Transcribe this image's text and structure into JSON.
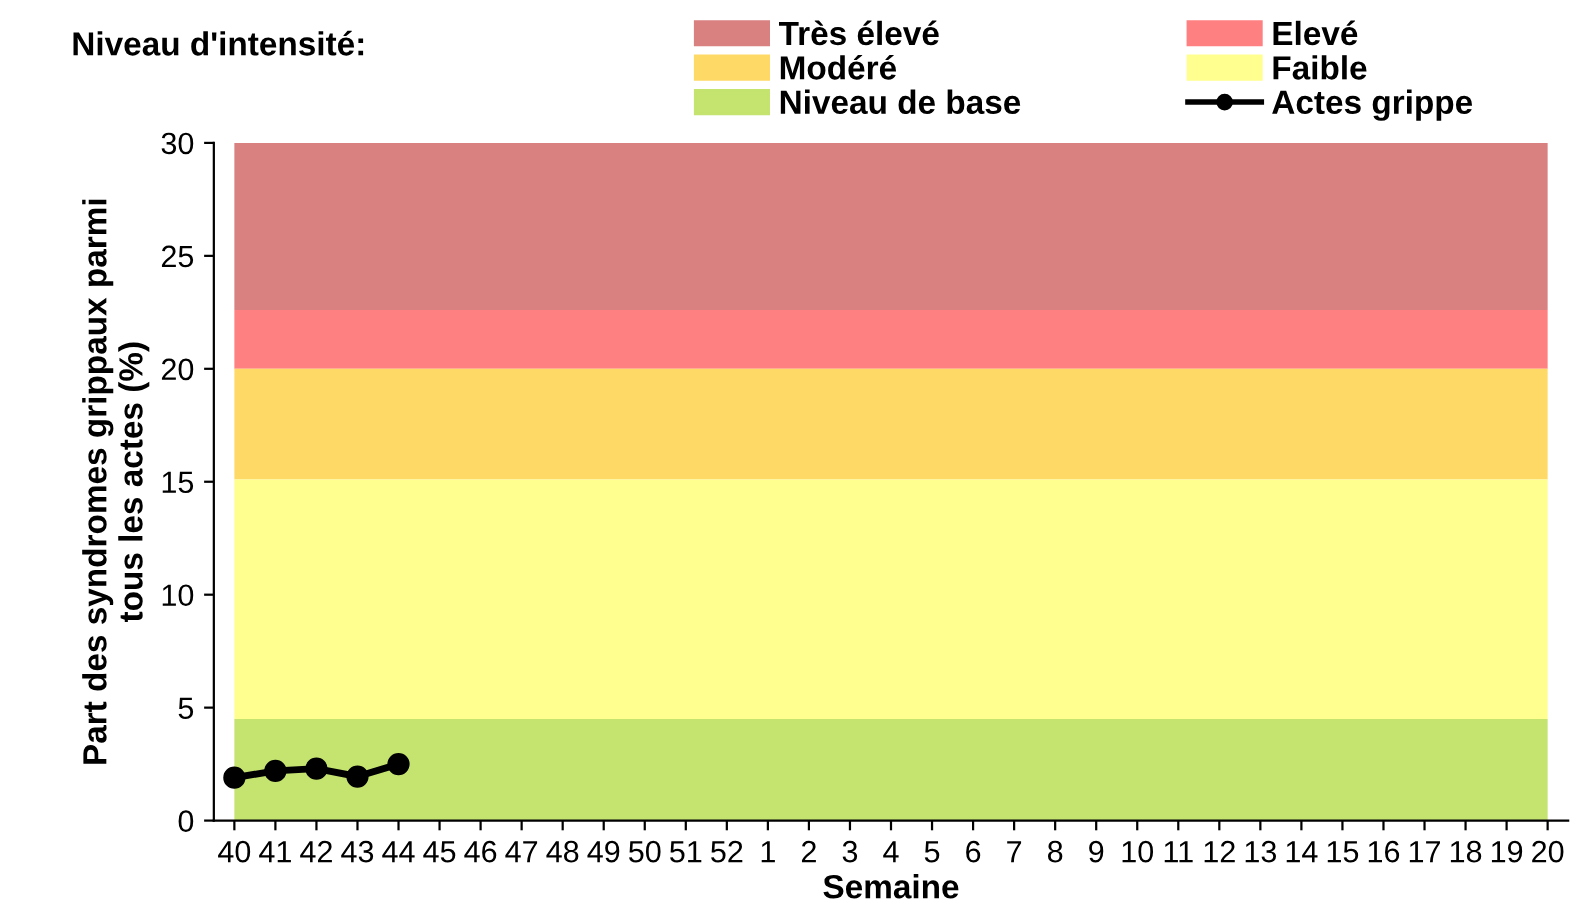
{
  "chart_data": {
    "type": "line",
    "legend_title": "Niveau d'intensité:",
    "xlabel": "Semaine",
    "ylabel": "Part des syndromes grippaux parmi\ntous les actes (%)",
    "categories": [
      "40",
      "41",
      "42",
      "43",
      "44",
      "45",
      "46",
      "47",
      "48",
      "49",
      "50",
      "51",
      "52",
      "1",
      "2",
      "3",
      "4",
      "5",
      "6",
      "7",
      "8",
      "9",
      "10",
      "11",
      "12",
      "13",
      "14",
      "15",
      "16",
      "17",
      "18",
      "19",
      "20"
    ],
    "series": [
      {
        "name": "Actes grippe",
        "color": "#000000",
        "values": [
          1.9,
          2.2,
          2.3,
          1.95,
          2.5,
          null,
          null,
          null,
          null,
          null,
          null,
          null,
          null,
          null,
          null,
          null,
          null,
          null,
          null,
          null,
          null,
          null,
          null,
          null,
          null,
          null,
          null,
          null,
          null,
          null,
          null,
          null,
          null
        ]
      }
    ],
    "bands": [
      {
        "axis": "y",
        "from": 22.6,
        "to": 30,
        "label": "Très élevé",
        "color": "#d98080"
      },
      {
        "axis": "y",
        "from": 20,
        "to": 22.6,
        "label": "Elevé",
        "color": "#ff8080"
      },
      {
        "axis": "y",
        "from": 15.1,
        "to": 20,
        "label": "Modéré",
        "color": "#ffd966"
      },
      {
        "axis": "y",
        "from": 4.5,
        "to": 15.1,
        "label": "Faible",
        "color": "#ffff8f"
      },
      {
        "axis": "y",
        "from": 0,
        "to": 4.5,
        "label": "Niveau de base",
        "color": "#c4e36f"
      }
    ],
    "ylim": [
      0,
      30
    ],
    "yticks": [
      0,
      5,
      10,
      15,
      20,
      25,
      30
    ],
    "marker": "circle",
    "line_style": "solid",
    "legend": "top",
    "grid": false
  }
}
